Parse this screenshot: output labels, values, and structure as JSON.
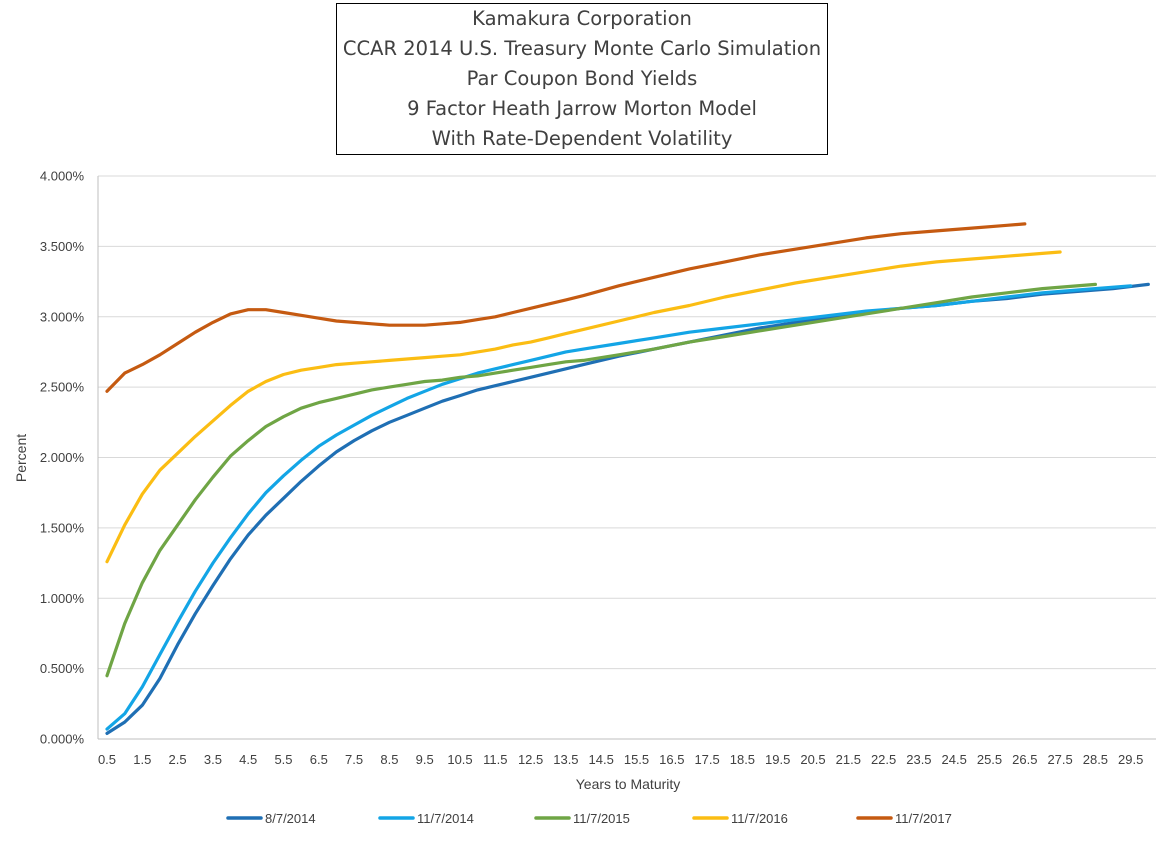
{
  "title_lines": [
    "Kamakura Corporation",
    "CCAR 2014 U.S. Treasury Monte Carlo Simulation",
    "Par Coupon Bond Yields",
    "9 Factor Heath Jarrow Morton Model",
    "With Rate-Dependent Volatility"
  ],
  "chart_data": {
    "type": "line",
    "title": "Kamakura Corporation CCAR 2014 U.S. Treasury Monte Carlo Simulation Par Coupon Bond Yields 9 Factor Heath Jarrow Morton Model With Rate-Dependent Volatility",
    "xlabel": "Years to Maturity",
    "ylabel": "Percent",
    "xlim": [
      0.5,
      30.0
    ],
    "ylim": [
      0,
      4
    ],
    "x_tick_labels": [
      "0.5",
      "1.5",
      "2.5",
      "3.5",
      "4.5",
      "5.5",
      "6.5",
      "7.5",
      "8.5",
      "9.5",
      "10.5",
      "11.5",
      "12.5",
      "13.5",
      "14.5",
      "15.5",
      "16.5",
      "17.5",
      "18.5",
      "19.5",
      "20.5",
      "21.5",
      "22.5",
      "23.5",
      "24.5",
      "25.5",
      "26.5",
      "27.5",
      "28.5",
      "29.5"
    ],
    "y_ticks": [
      0,
      0.5,
      1.0,
      1.5,
      2.0,
      2.5,
      3.0,
      3.5,
      4.0
    ],
    "y_tick_labels": [
      "0.000%",
      "0.500%",
      "1.000%",
      "1.500%",
      "2.000%",
      "2.500%",
      "3.000%",
      "3.500%",
      "4.000%"
    ],
    "grid": "horizontal",
    "legend_position": "bottom",
    "series": [
      {
        "name": "8/7/2014",
        "color": "#1f6fb4",
        "x": [
          0.5,
          1,
          1.5,
          2,
          2.5,
          3,
          3.5,
          4,
          4.5,
          5,
          5.5,
          6,
          6.5,
          7,
          7.5,
          8,
          8.5,
          9,
          9.5,
          10,
          10.5,
          11,
          11.5,
          12,
          12.5,
          13,
          13.5,
          14,
          15,
          16,
          17,
          18,
          19,
          20,
          21,
          22,
          23,
          24,
          25,
          26,
          27,
          28,
          29,
          30
        ],
        "values": [
          0.04,
          0.12,
          0.24,
          0.43,
          0.67,
          0.89,
          1.09,
          1.28,
          1.45,
          1.59,
          1.71,
          1.83,
          1.94,
          2.04,
          2.12,
          2.19,
          2.25,
          2.3,
          2.35,
          2.4,
          2.44,
          2.48,
          2.51,
          2.54,
          2.57,
          2.6,
          2.63,
          2.66,
          2.72,
          2.77,
          2.82,
          2.87,
          2.92,
          2.96,
          3.0,
          3.03,
          3.06,
          3.08,
          3.11,
          3.13,
          3.16,
          3.18,
          3.2,
          3.23
        ]
      },
      {
        "name": "11/7/2014",
        "color": "#13a5e6",
        "x": [
          0.5,
          1,
          1.5,
          2,
          2.5,
          3,
          3.5,
          4,
          4.5,
          5,
          5.5,
          6,
          6.5,
          7,
          7.5,
          8,
          8.5,
          9,
          9.5,
          10,
          10.5,
          11,
          11.5,
          12,
          12.5,
          13,
          13.5,
          14,
          15,
          16,
          17,
          18,
          19,
          20,
          21,
          22,
          23,
          24,
          25,
          26,
          27,
          28,
          29.5
        ],
        "values": [
          0.07,
          0.18,
          0.37,
          0.6,
          0.83,
          1.05,
          1.25,
          1.43,
          1.6,
          1.75,
          1.87,
          1.98,
          2.08,
          2.16,
          2.23,
          2.3,
          2.36,
          2.42,
          2.47,
          2.52,
          2.56,
          2.6,
          2.63,
          2.66,
          2.69,
          2.72,
          2.75,
          2.77,
          2.81,
          2.85,
          2.89,
          2.92,
          2.95,
          2.98,
          3.01,
          3.04,
          3.06,
          3.08,
          3.11,
          3.14,
          3.17,
          3.19,
          3.22
        ]
      },
      {
        "name": "11/7/2015",
        "color": "#6fa545",
        "x": [
          0.5,
          1,
          1.5,
          2,
          2.5,
          3,
          3.5,
          4,
          4.5,
          5,
          5.5,
          6,
          6.5,
          7,
          7.5,
          8,
          8.5,
          9,
          9.5,
          10,
          10.5,
          11,
          11.5,
          12,
          12.5,
          13,
          13.5,
          14,
          15,
          16,
          17,
          18,
          19,
          20,
          21,
          22,
          23,
          24,
          25,
          26,
          27,
          28.5
        ],
        "values": [
          0.45,
          0.82,
          1.11,
          1.34,
          1.52,
          1.7,
          1.86,
          2.01,
          2.12,
          2.22,
          2.29,
          2.35,
          2.39,
          2.42,
          2.45,
          2.48,
          2.5,
          2.52,
          2.54,
          2.55,
          2.57,
          2.58,
          2.6,
          2.62,
          2.64,
          2.66,
          2.68,
          2.69,
          2.73,
          2.77,
          2.82,
          2.86,
          2.9,
          2.94,
          2.98,
          3.02,
          3.06,
          3.1,
          3.14,
          3.17,
          3.2,
          3.23
        ]
      },
      {
        "name": "11/7/2016",
        "color": "#fbbd13",
        "x": [
          0.5,
          1,
          1.5,
          2,
          2.5,
          3,
          3.5,
          4,
          4.5,
          5,
          5.5,
          6,
          6.5,
          7,
          7.5,
          8,
          8.5,
          9,
          9.5,
          10,
          10.5,
          11,
          11.5,
          12,
          12.5,
          13,
          13.5,
          14,
          15,
          16,
          17,
          18,
          19,
          20,
          21,
          22,
          23,
          24,
          25,
          26,
          27,
          27.5
        ],
        "values": [
          1.26,
          1.52,
          1.74,
          1.91,
          2.03,
          2.15,
          2.26,
          2.37,
          2.47,
          2.54,
          2.59,
          2.62,
          2.64,
          2.66,
          2.67,
          2.68,
          2.69,
          2.7,
          2.71,
          2.72,
          2.73,
          2.75,
          2.77,
          2.8,
          2.82,
          2.85,
          2.88,
          2.91,
          2.97,
          3.03,
          3.08,
          3.14,
          3.19,
          3.24,
          3.28,
          3.32,
          3.36,
          3.39,
          3.41,
          3.43,
          3.45,
          3.46
        ]
      },
      {
        "name": "11/7/2017",
        "color": "#c55a11",
        "x": [
          0.5,
          1,
          1.5,
          2,
          2.5,
          3,
          3.5,
          4,
          4.5,
          5,
          5.5,
          6,
          6.5,
          7,
          7.5,
          8,
          8.5,
          9,
          9.5,
          10,
          10.5,
          11,
          11.5,
          12,
          12.5,
          13,
          13.5,
          14,
          15,
          16,
          17,
          18,
          19,
          20,
          21,
          22,
          23,
          24,
          25,
          26,
          26.5
        ],
        "values": [
          2.47,
          2.6,
          2.66,
          2.73,
          2.81,
          2.89,
          2.96,
          3.02,
          3.05,
          3.05,
          3.03,
          3.01,
          2.99,
          2.97,
          2.96,
          2.95,
          2.94,
          2.94,
          2.94,
          2.95,
          2.96,
          2.98,
          3.0,
          3.03,
          3.06,
          3.09,
          3.12,
          3.15,
          3.22,
          3.28,
          3.34,
          3.39,
          3.44,
          3.48,
          3.52,
          3.56,
          3.59,
          3.61,
          3.63,
          3.65,
          3.66
        ]
      }
    ]
  }
}
